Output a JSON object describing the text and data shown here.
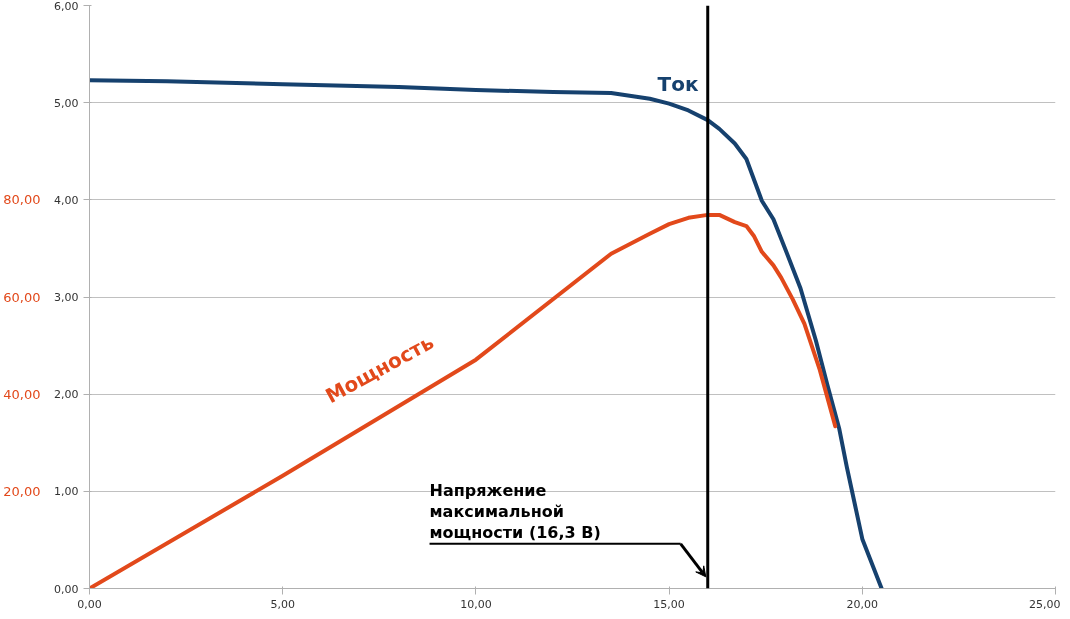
{
  "chart_data": {
    "type": "line",
    "xlim": [
      0,
      25
    ],
    "xticks": [
      {
        "value": 0,
        "label": "0,00"
      },
      {
        "value": 5,
        "label": "5,00"
      },
      {
        "value": 10,
        "label": "10,00"
      },
      {
        "value": 15,
        "label": "15,00"
      },
      {
        "value": 20,
        "label": "20,00"
      },
      {
        "value": 25,
        "label": "25,00"
      }
    ],
    "ylim": [
      0,
      6
    ],
    "yticks": [
      {
        "value": 0,
        "label": "0,00"
      },
      {
        "value": 1,
        "label": "1,00"
      },
      {
        "value": 2,
        "label": "2,00"
      },
      {
        "value": 3,
        "label": "3,00"
      },
      {
        "value": 4,
        "label": "4,00"
      },
      {
        "value": 5,
        "label": "5,00"
      },
      {
        "value": 6,
        "label": "6,00"
      }
    ],
    "y2lim": [
      0,
      120
    ],
    "y2ticks": [
      {
        "value": 20,
        "label": "20,00"
      },
      {
        "value": 40,
        "label": "40,00"
      },
      {
        "value": 60,
        "label": "60,00"
      },
      {
        "value": 80,
        "label": "80,00"
      }
    ],
    "grid": "y",
    "legend": false,
    "series": [
      {
        "name": "Ток",
        "color": "#16416e",
        "x": [
          0,
          2,
          5,
          8,
          10,
          12,
          13.5,
          14.5,
          15,
          15.5,
          16,
          16.3,
          16.7,
          17.0,
          17.4,
          17.7,
          18.0,
          18.4,
          18.8,
          19.1,
          19.4,
          19.6,
          19.8,
          20.0,
          20.5
        ],
        "values": [
          5.23,
          5.22,
          5.19,
          5.16,
          5.13,
          5.11,
          5.1,
          5.04,
          4.99,
          4.92,
          4.82,
          4.73,
          4.58,
          4.42,
          3.99,
          3.8,
          3.5,
          3.09,
          2.55,
          2.09,
          1.65,
          1.25,
          0.88,
          0.51,
          0
        ]
      },
      {
        "name": "Мощность",
        "color": "#e2491b",
        "axis": "y2",
        "x": [
          0,
          5,
          10,
          13.5,
          14.5,
          15,
          15.5,
          16,
          16.3,
          16.7,
          17.0,
          17.2,
          17.4,
          17.7,
          17.9,
          18.2,
          18.5,
          18.9,
          19.3
        ],
        "values": [
          0,
          23.2,
          47.1,
          68.9,
          73.0,
          75.0,
          76.3,
          76.9,
          76.9,
          75.4,
          74.6,
          72.5,
          69.3,
          66.5,
          64.0,
          59.5,
          54.5,
          45.0,
          33.4
        ]
      }
    ],
    "ref_lines": [
      {
        "axis": "x",
        "value": 16,
        "color": "#000000"
      }
    ],
    "annotations": [
      "Напряжение\nмаксимальной\nмощности (16,3 В)"
    ]
  }
}
